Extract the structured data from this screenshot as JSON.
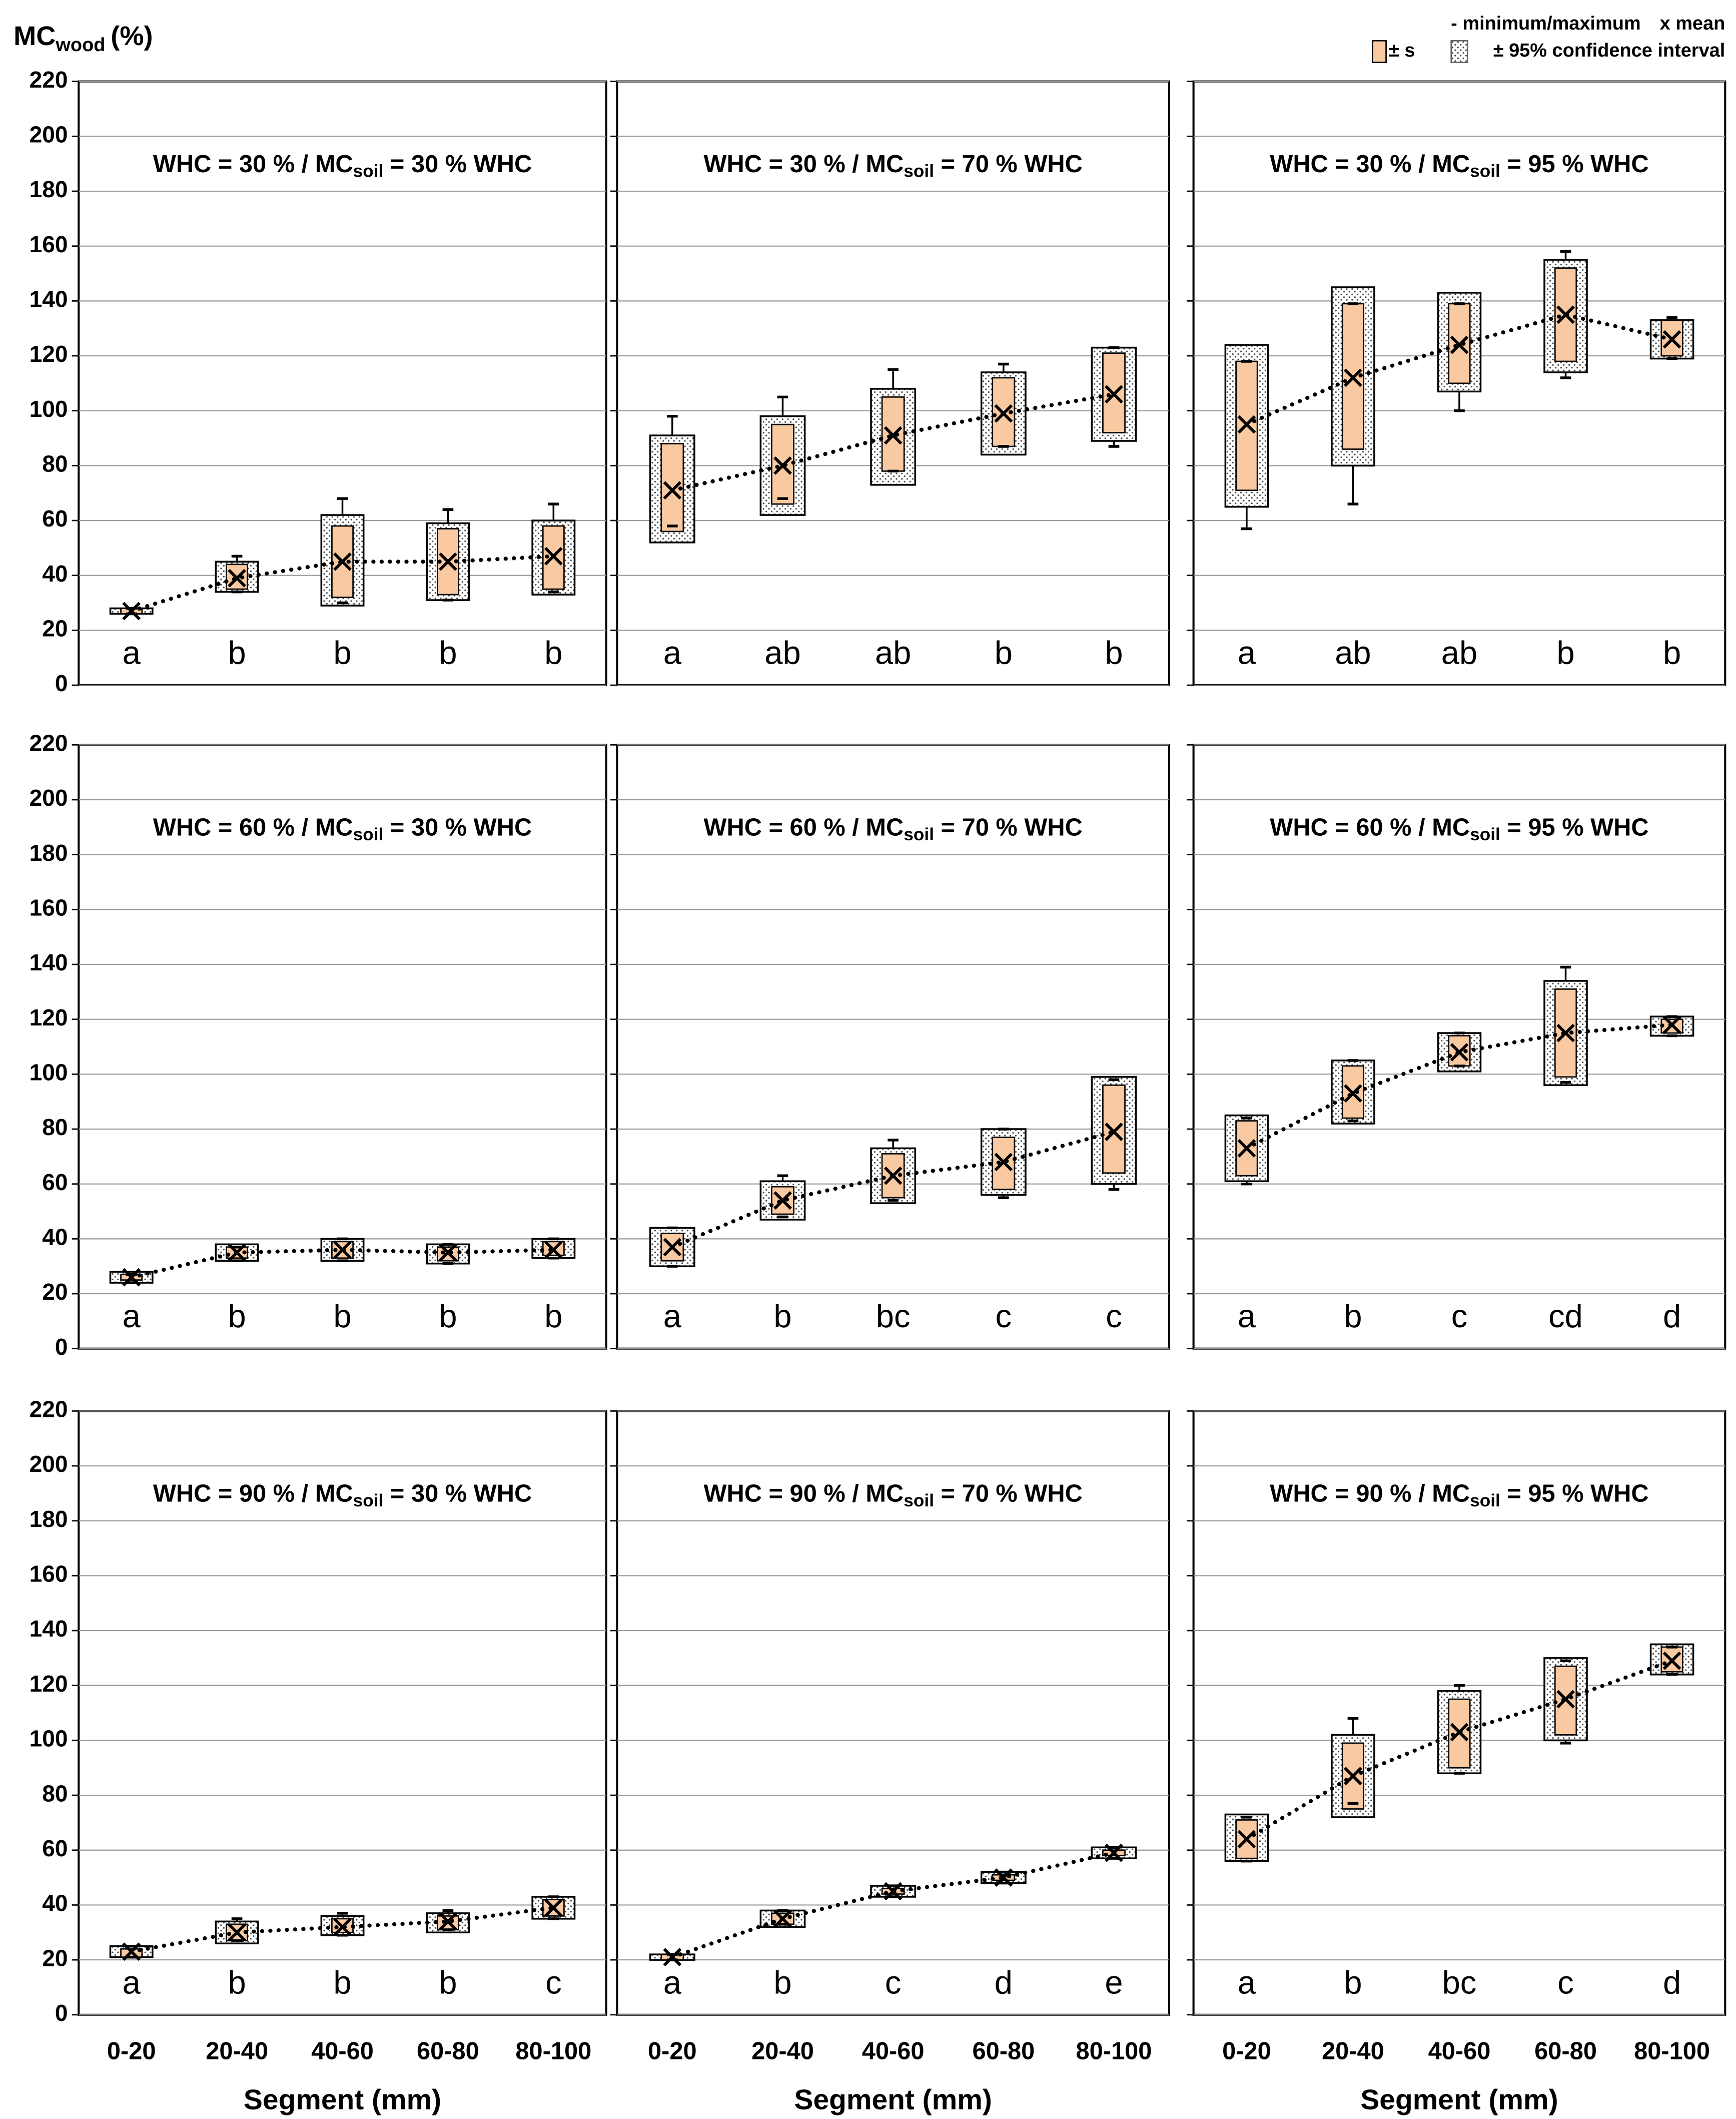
{
  "figure": {
    "y_label": {
      "main": "MC",
      "sub": "wood",
      "unit": "(%)"
    },
    "x_label": "Segment (mm)",
    "legend": {
      "minmax": "- minimum/maximum",
      "mean": "x mean",
      "sd": "± s",
      "ci": "± 95% confidence interval"
    },
    "ylim": [
      0,
      220
    ],
    "yticks": [
      0,
      20,
      40,
      60,
      80,
      100,
      120,
      140,
      160,
      180,
      200,
      220
    ],
    "categories": [
      "0-20",
      "20-40",
      "40-60",
      "60-80",
      "80-100"
    ],
    "sd_color": "#f9c9a1"
  },
  "chart_data": [
    {
      "type": "box",
      "title": {
        "main": "WHC = 30 % / MC",
        "sub": "soil",
        "rest": "= 30 % WHC"
      },
      "letters": [
        "a",
        "b",
        "b",
        "b",
        "b"
      ],
      "boxes": [
        {
          "mean": 27,
          "ci": [
            26,
            28
          ],
          "sd": [
            26,
            28
          ],
          "min": 26,
          "max": 28
        },
        {
          "mean": 39,
          "ci": [
            34,
            45
          ],
          "sd": [
            35,
            44
          ],
          "min": 34,
          "max": 47
        },
        {
          "mean": 45,
          "ci": [
            29,
            62
          ],
          "sd": [
            32,
            58
          ],
          "min": 30,
          "max": 68
        },
        {
          "mean": 45,
          "ci": [
            31,
            59
          ],
          "sd": [
            33,
            57
          ],
          "min": 31,
          "max": 64
        },
        {
          "mean": 47,
          "ci": [
            33,
            60
          ],
          "sd": [
            35,
            58
          ],
          "min": 34,
          "max": 66
        }
      ]
    },
    {
      "type": "box",
      "title": {
        "main": "WHC = 30 % / MC",
        "sub": "soil",
        "rest": "= 70 % WHC"
      },
      "letters": [
        "a",
        "ab",
        "ab",
        "b",
        "b"
      ],
      "boxes": [
        {
          "mean": 71,
          "ci": [
            52,
            91
          ],
          "sd": [
            56,
            88
          ],
          "min": 58,
          "max": 98
        },
        {
          "mean": 80,
          "ci": [
            62,
            98
          ],
          "sd": [
            66,
            95
          ],
          "min": 68,
          "max": 105
        },
        {
          "mean": 91,
          "ci": [
            73,
            108
          ],
          "sd": [
            78,
            105
          ],
          "min": 78,
          "max": 115
        },
        {
          "mean": 99,
          "ci": [
            84,
            114
          ],
          "sd": [
            87,
            112
          ],
          "min": 87,
          "max": 117
        },
        {
          "mean": 106,
          "ci": [
            89,
            123
          ],
          "sd": [
            92,
            121
          ],
          "min": 87,
          "max": 123
        }
      ]
    },
    {
      "type": "box",
      "title": {
        "main": "WHC = 30 % / MC",
        "sub": "soil",
        "rest": "= 95 % WHC"
      },
      "letters": [
        "a",
        "ab",
        "ab",
        "b",
        "b"
      ],
      "boxes": [
        {
          "mean": 95,
          "ci": [
            65,
            124
          ],
          "sd": [
            71,
            118
          ],
          "min": 57,
          "max": 118
        },
        {
          "mean": 112,
          "ci": [
            80,
            145
          ],
          "sd": [
            86,
            139
          ],
          "min": 66,
          "max": 139
        },
        {
          "mean": 124,
          "ci": [
            107,
            143
          ],
          "sd": [
            110,
            139
          ],
          "min": 100,
          "max": 139
        },
        {
          "mean": 135,
          "ci": [
            114,
            155
          ],
          "sd": [
            118,
            152
          ],
          "min": 112,
          "max": 158
        },
        {
          "mean": 126,
          "ci": [
            119,
            133
          ],
          "sd": [
            120,
            133
          ],
          "min": 119,
          "max": 134
        }
      ]
    },
    {
      "type": "box",
      "title": {
        "main": "WHC = 60 % / MC",
        "sub": "soil",
        "rest": "= 30 % WHC"
      },
      "letters": [
        "a",
        "b",
        "b",
        "b",
        "b"
      ],
      "boxes": [
        {
          "mean": 26,
          "ci": [
            24,
            28
          ],
          "sd": [
            25,
            27
          ],
          "min": 24,
          "max": 27
        },
        {
          "mean": 35,
          "ci": [
            32,
            38
          ],
          "sd": [
            33,
            37
          ],
          "min": 32,
          "max": 37
        },
        {
          "mean": 36,
          "ci": [
            32,
            40
          ],
          "sd": [
            33,
            39
          ],
          "min": 32,
          "max": 40
        },
        {
          "mean": 35,
          "ci": [
            31,
            38
          ],
          "sd": [
            32,
            37
          ],
          "min": 31,
          "max": 38
        },
        {
          "mean": 36,
          "ci": [
            33,
            40
          ],
          "sd": [
            34,
            39
          ],
          "min": 33,
          "max": 40
        }
      ]
    },
    {
      "type": "box",
      "title": {
        "main": "WHC = 60 % / MC",
        "sub": "soil",
        "rest": "= 70 % WHC"
      },
      "letters": [
        "a",
        "b",
        "bc",
        "c",
        "c"
      ],
      "boxes": [
        {
          "mean": 37,
          "ci": [
            30,
            44
          ],
          "sd": [
            32,
            42
          ],
          "min": 30,
          "max": 44
        },
        {
          "mean": 54,
          "ci": [
            47,
            61
          ],
          "sd": [
            49,
            59
          ],
          "min": 48,
          "max": 63
        },
        {
          "mean": 63,
          "ci": [
            53,
            73
          ],
          "sd": [
            55,
            71
          ],
          "min": 54,
          "max": 76
        },
        {
          "mean": 68,
          "ci": [
            56,
            80
          ],
          "sd": [
            58,
            77
          ],
          "min": 55,
          "max": 80
        },
        {
          "mean": 79,
          "ci": [
            60,
            99
          ],
          "sd": [
            64,
            96
          ],
          "min": 58,
          "max": 98
        }
      ]
    },
    {
      "type": "box",
      "title": {
        "main": "WHC = 60 % / MC",
        "sub": "soil",
        "rest": "= 95 % WHC"
      },
      "letters": [
        "a",
        "b",
        "c",
        "cd",
        "d"
      ],
      "boxes": [
        {
          "mean": 73,
          "ci": [
            61,
            85
          ],
          "sd": [
            63,
            83
          ],
          "min": 60,
          "max": 84
        },
        {
          "mean": 93,
          "ci": [
            82,
            105
          ],
          "sd": [
            84,
            103
          ],
          "min": 83,
          "max": 105
        },
        {
          "mean": 108,
          "ci": [
            101,
            115
          ],
          "sd": [
            103,
            114
          ],
          "min": 103,
          "max": 115
        },
        {
          "mean": 115,
          "ci": [
            96,
            134
          ],
          "sd": [
            99,
            131
          ],
          "min": 97,
          "max": 139
        },
        {
          "mean": 118,
          "ci": [
            114,
            121
          ],
          "sd": [
            115,
            120
          ],
          "min": 114,
          "max": 121
        }
      ]
    },
    {
      "type": "box",
      "title": {
        "main": "WHC = 90 % / MC",
        "sub": "soil",
        "rest": "= 30 % WHC"
      },
      "letters": [
        "a",
        "b",
        "b",
        "b",
        "c"
      ],
      "boxes": [
        {
          "mean": 23,
          "ci": [
            21,
            25
          ],
          "sd": [
            21,
            24
          ],
          "min": 21,
          "max": 25
        },
        {
          "mean": 30,
          "ci": [
            26,
            34
          ],
          "sd": [
            27,
            33
          ],
          "min": 27,
          "max": 35
        },
        {
          "mean": 32,
          "ci": [
            29,
            36
          ],
          "sd": [
            30,
            35
          ],
          "min": 29,
          "max": 37
        },
        {
          "mean": 34,
          "ci": [
            30,
            37
          ],
          "sd": [
            31,
            36
          ],
          "min": 31,
          "max": 38
        },
        {
          "mean": 39,
          "ci": [
            35,
            43
          ],
          "sd": [
            36,
            42
          ],
          "min": 35,
          "max": 43
        }
      ]
    },
    {
      "type": "box",
      "title": {
        "main": "WHC = 90 % / MC",
        "sub": "soil",
        "rest": "= 70 % WHC"
      },
      "letters": [
        "a",
        "b",
        "c",
        "d",
        "e"
      ],
      "boxes": [
        {
          "mean": 21,
          "ci": [
            20,
            22
          ],
          "sd": [
            20,
            22
          ],
          "min": 20,
          "max": 22
        },
        {
          "mean": 35,
          "ci": [
            32,
            38
          ],
          "sd": [
            33,
            37
          ],
          "min": 33,
          "max": 38
        },
        {
          "mean": 45,
          "ci": [
            43,
            47
          ],
          "sd": [
            44,
            46
          ],
          "min": 43,
          "max": 47
        },
        {
          "mean": 50,
          "ci": [
            48,
            52
          ],
          "sd": [
            49,
            51
          ],
          "min": 48,
          "max": 52
        },
        {
          "mean": 59,
          "ci": [
            57,
            61
          ],
          "sd": [
            58,
            60
          ],
          "min": 57,
          "max": 61
        }
      ]
    },
    {
      "type": "box",
      "title": {
        "main": "WHC = 90 % / MC",
        "sub": "soil",
        "rest": "= 95 % WHC"
      },
      "letters": [
        "a",
        "b",
        "bc",
        "c",
        "d"
      ],
      "boxes": [
        {
          "mean": 64,
          "ci": [
            56,
            73
          ],
          "sd": [
            57,
            71
          ],
          "min": 56,
          "max": 72
        },
        {
          "mean": 87,
          "ci": [
            72,
            102
          ],
          "sd": [
            75,
            99
          ],
          "min": 77,
          "max": 108
        },
        {
          "mean": 103,
          "ci": [
            88,
            118
          ],
          "sd": [
            90,
            115
          ],
          "min": 88,
          "max": 120
        },
        {
          "mean": 115,
          "ci": [
            100,
            130
          ],
          "sd": [
            102,
            127
          ],
          "min": 99,
          "max": 129
        },
        {
          "mean": 129,
          "ci": [
            124,
            135
          ],
          "sd": [
            125,
            134
          ],
          "min": 124,
          "max": 134
        }
      ]
    }
  ]
}
